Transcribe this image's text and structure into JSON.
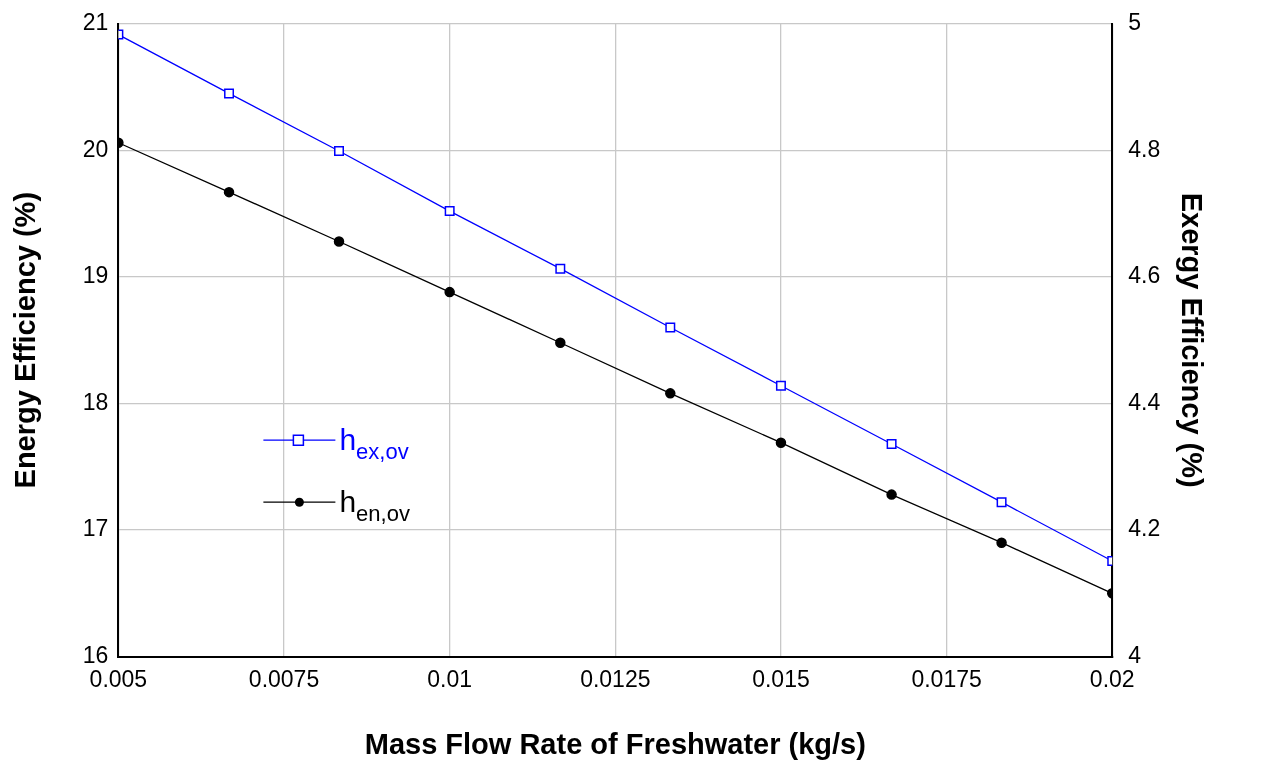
{
  "chart_data": {
    "type": "line",
    "xlabel": "Mass Flow Rate of Freshwater (kg/s)",
    "ylabel": "Energy Efficiency (%)",
    "y2label": "Exergy Efficiency (%)",
    "x": [
      0.005,
      0.00667,
      0.00833,
      0.01,
      0.01167,
      0.01333,
      0.015,
      0.01667,
      0.01833,
      0.02
    ],
    "xlim": [
      0.005,
      0.02
    ],
    "xticks": [
      0.005,
      0.0075,
      0.01,
      0.0125,
      0.015,
      0.0175,
      0.02
    ],
    "ylim": [
      16,
      21
    ],
    "yticks": [
      16,
      17,
      18,
      19,
      20,
      21
    ],
    "y2lim": [
      4,
      5
    ],
    "y2ticks": [
      4,
      4.2,
      4.4,
      4.6,
      4.8,
      5
    ],
    "grid": true,
    "legend": "center left",
    "line_style": "solid",
    "series": [
      {
        "name": "h$_{ex,ov}$",
        "color": "#0000ff",
        "axis": "y2",
        "marker": "square",
        "values": [
          4.983,
          4.89,
          4.799,
          4.704,
          4.613,
          4.52,
          4.428,
          4.336,
          4.244,
          4.151
        ]
      },
      {
        "name": "h$_{en,ov}$",
        "color": "#000000",
        "axis": "y",
        "marker": "circle",
        "values": [
          20.06,
          19.67,
          19.28,
          18.88,
          18.48,
          18.08,
          17.69,
          17.28,
          16.9,
          16.5
        ]
      }
    ]
  }
}
